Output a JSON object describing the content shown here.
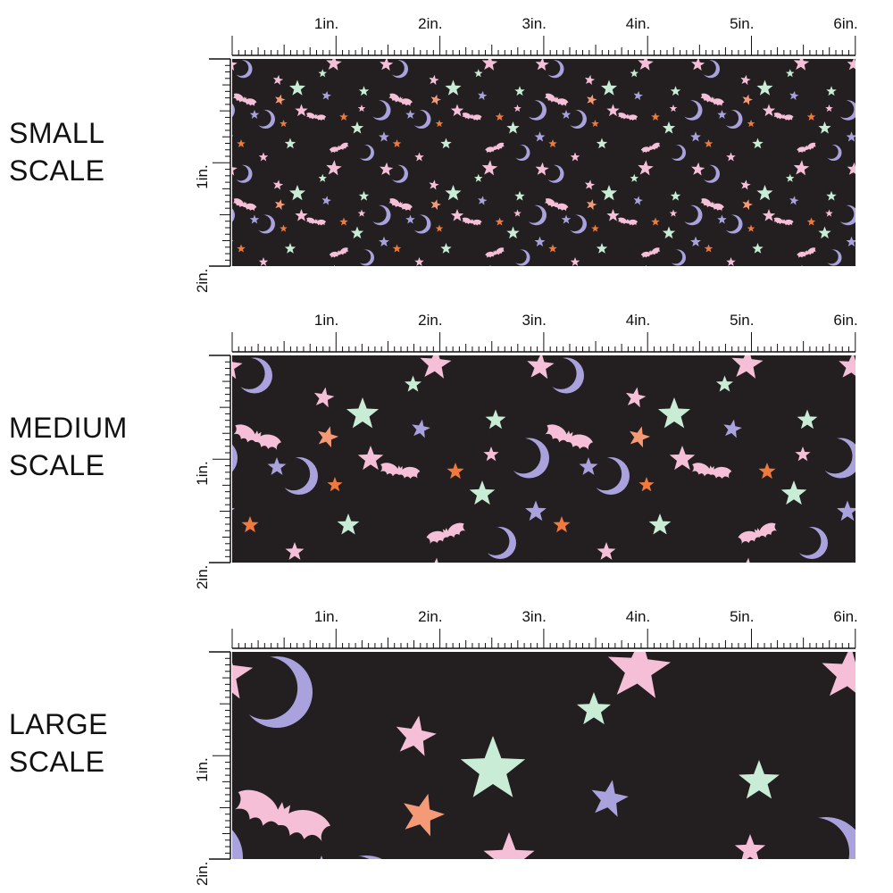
{
  "colors": {
    "background": "#231f20",
    "pink": "#f5bfd8",
    "lavender": "#a9a2dd",
    "mint": "#c8ecd6",
    "orange": "#f07a3e",
    "salmon": "#f59a77"
  },
  "ruler": {
    "top_labels": [
      "1in.",
      "2in.",
      "3in.",
      "4in.",
      "5in.",
      "6in."
    ],
    "side_labels": [
      "1in.",
      "2in."
    ]
  },
  "motifs": [
    "crescent-moon",
    "star",
    "bat"
  ],
  "scales": [
    {
      "id": "small",
      "label_line1": "SMALL",
      "label_line2": "SCALE"
    },
    {
      "id": "medium",
      "label_line1": "MEDIUM",
      "label_line2": "SCALE"
    },
    {
      "id": "large",
      "label_line1": "LARGE",
      "label_line2": "SCALE"
    }
  ]
}
